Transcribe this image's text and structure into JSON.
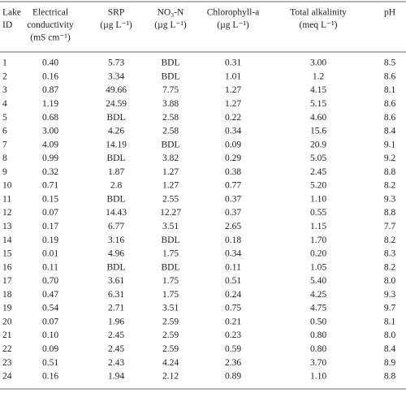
{
  "header": [
    [
      "Lake",
      "ID"
    ],
    [
      "Electrical",
      "conductivity",
      "(mS cm⁻¹)"
    ],
    [
      "SRP",
      "(µg L⁻¹)"
    ],
    [
      "NO₃-N",
      "(µg L⁻¹)"
    ],
    [
      "Chlorophyll-a",
      "(µg L⁻¹)"
    ],
    [
      "Total alkalinity",
      "(meq L⁻¹)"
    ],
    [
      "pH"
    ]
  ],
  "rows": [
    [
      "1",
      "0.40",
      "5.73",
      "BDL",
      "0.31",
      "3.00",
      "8.5"
    ],
    [
      "2",
      "0.16",
      "3.34",
      "BDL",
      "1.01",
      "1.2",
      "8.6"
    ],
    [
      "3",
      "0.87",
      "49.66",
      "7.75",
      "1.27",
      "4.15",
      "8.1"
    ],
    [
      "4",
      "1.19",
      "24.59",
      "3.88",
      "1.27",
      "5.15",
      "8.6"
    ],
    [
      "5",
      "0.68",
      "BDL",
      "2.58",
      "0.22",
      "4.60",
      "8.6"
    ],
    [
      "6",
      "3.00",
      "4.26",
      "2.58",
      "0.34",
      "15.6",
      "8.4"
    ],
    [
      "7",
      "4.09",
      "14.19",
      "BDL",
      "0.09",
      "20.9",
      "9.1"
    ],
    [
      "8",
      "0.99",
      "BDL",
      "3.82",
      "0.29",
      "5.05",
      "9.2"
    ],
    [
      "9",
      "0.32",
      "1.87",
      "1.27",
      "0.38",
      "2.45",
      "8.8"
    ],
    [
      "10",
      "0.71",
      "2.8",
      "1.27",
      "0.77",
      "5.20",
      "8.2"
    ],
    [
      "11",
      "0.15",
      "BDL",
      "2.55",
      "0.37",
      "1.10",
      "9.3"
    ],
    [
      "12",
      "0.07",
      "14.43",
      "12.27",
      "0.37",
      "0.55",
      "8.8"
    ],
    [
      "13",
      "0.17",
      "6.77",
      "3.51",
      "2.65",
      "1.15",
      "7.7"
    ],
    [
      "14",
      "0.19",
      "3.16",
      "BDL",
      "0.18",
      "1.70",
      "8.2"
    ],
    [
      "15",
      "0.01",
      "4.96",
      "1.75",
      "0.34",
      "0.20",
      "8.3"
    ],
    [
      "16",
      "0.11",
      "BDL",
      "BDL",
      "0.11",
      "1.05",
      "8.2"
    ],
    [
      "17",
      "0.70",
      "3.61",
      "1.75",
      "0.51",
      "5.40",
      "8.0"
    ],
    [
      "18",
      "0.47",
      "6.31",
      "1.75",
      "0.24",
      "4.25",
      "9.3"
    ],
    [
      "19",
      "0.54",
      "2.71",
      "3.51",
      "0.75",
      "4.75",
      "9.7"
    ],
    [
      "20",
      "0.07",
      "1.96",
      "2.59",
      "0.21",
      "0.50",
      "8.1"
    ],
    [
      "21",
      "0.10",
      "2.45",
      "2.59",
      "0.23",
      "0.80",
      "8.0"
    ],
    [
      "22",
      "0.09",
      "2.45",
      "2.59",
      "0.59",
      "0.80",
      "8.4"
    ],
    [
      "23",
      "0.51",
      "2.43",
      "4.24",
      "2.36",
      "3.70",
      "8.9"
    ],
    [
      "24",
      "0.16",
      "1.94",
      "2.12",
      "0.89",
      "1.10",
      "8.8"
    ]
  ]
}
